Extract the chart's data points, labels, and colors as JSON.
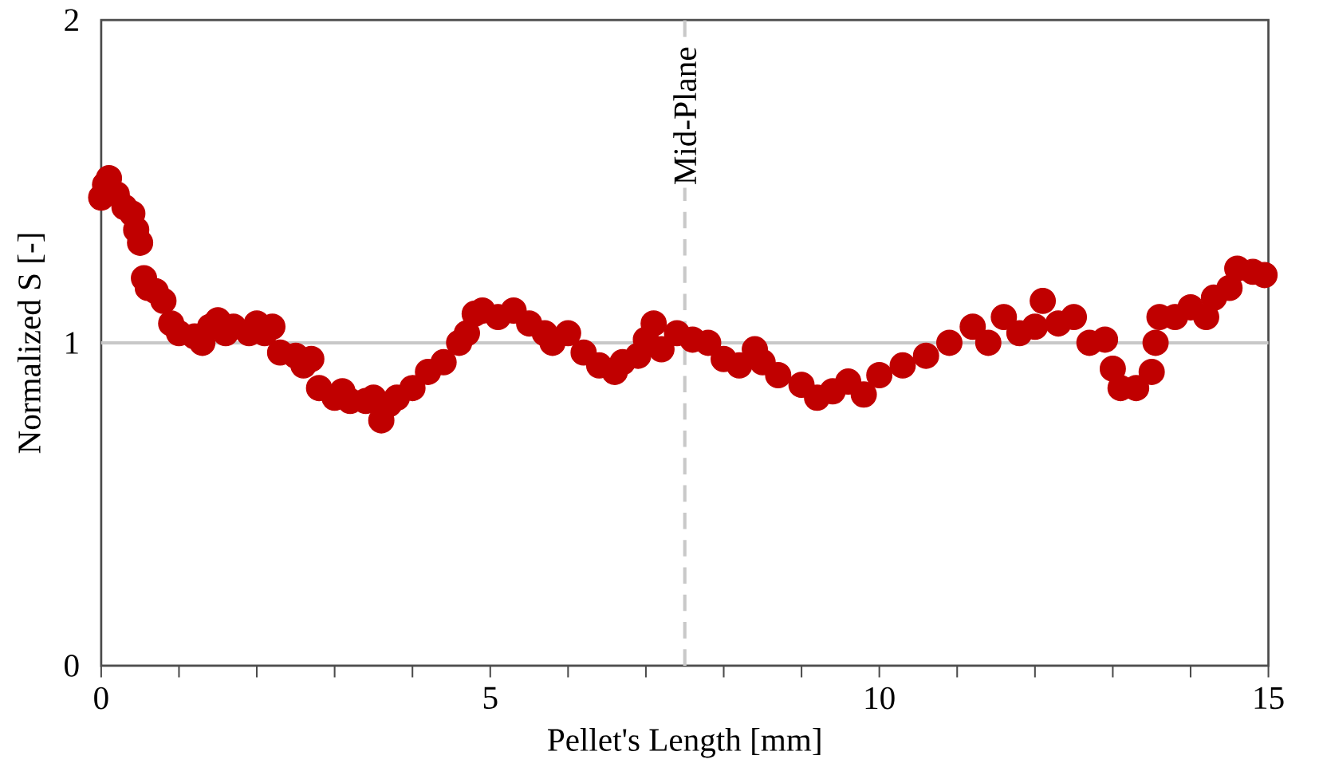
{
  "chart_data": {
    "type": "scatter",
    "xlabel": "Pellet's Length [mm]",
    "ylabel": "Normalized S [-]",
    "xlim": [
      0,
      15
    ],
    "ylim": [
      0,
      2
    ],
    "xticks": [
      0,
      {
        "value": 1,
        "label": null
      },
      {
        "value": 2,
        "label": null
      },
      {
        "value": 3,
        "label": null
      },
      {
        "value": 4,
        "label": null
      },
      5,
      {
        "value": 6,
        "label": null
      },
      {
        "value": 7,
        "label": null
      },
      {
        "value": 8,
        "label": null
      },
      {
        "value": 9,
        "label": null
      },
      10,
      {
        "value": 11,
        "label": null
      },
      {
        "value": 12,
        "label": null
      },
      {
        "value": 13,
        "label": null
      },
      {
        "value": 14,
        "label": null
      },
      15
    ],
    "yticks": [
      0,
      1,
      2
    ],
    "marker": "circle",
    "ref_lines": [
      {
        "axis": "x",
        "value": 7.5,
        "label": "Mid-Plane",
        "color": "#c8c8c8",
        "line_style": "dashed"
      },
      {
        "axis": "y",
        "value": 1,
        "color": "#c8c8c8",
        "line_style": "solid"
      }
    ],
    "series": [
      {
        "color": "#c00000",
        "x": [
          0,
          0.05,
          0.1,
          0.2,
          0.3,
          0.4,
          0.45,
          0.5,
          0.55,
          0.6,
          0.7,
          0.8,
          0.9,
          1.0,
          1.2,
          1.3,
          1.4,
          1.5,
          1.6,
          1.7,
          1.9,
          2.0,
          2.1,
          2.2,
          2.3,
          2.5,
          2.6,
          2.7,
          2.8,
          3.0,
          3.1,
          3.2,
          3.4,
          3.5,
          3.6,
          3.7,
          3.8,
          4.0,
          4.2,
          4.4,
          4.6,
          4.7,
          4.8,
          4.9,
          5.1,
          5.3,
          5.5,
          5.7,
          5.8,
          6.0,
          6.2,
          6.4,
          6.6,
          6.7,
          6.9,
          7.0,
          7.1,
          7.2,
          7.4,
          7.6,
          7.8,
          8.0,
          8.2,
          8.4,
          8.5,
          8.7,
          9.0,
          9.2,
          9.4,
          9.6,
          9.8,
          10.0,
          10.3,
          10.6,
          10.9,
          11.2,
          11.4,
          11.6,
          11.8,
          12.0,
          12.1,
          12.3,
          12.5,
          12.7,
          12.9,
          13.0,
          13.1,
          13.3,
          13.5,
          13.55,
          13.6,
          13.8,
          14.0,
          14.2,
          14.3,
          14.5,
          14.6,
          14.8,
          14.95
        ],
        "values": [
          1.45,
          1.49,
          1.51,
          1.46,
          1.42,
          1.4,
          1.35,
          1.31,
          1.2,
          1.17,
          1.16,
          1.13,
          1.06,
          1.03,
          1.02,
          1.0,
          1.05,
          1.07,
          1.03,
          1.05,
          1.03,
          1.06,
          1.03,
          1.05,
          0.97,
          0.96,
          0.93,
          0.95,
          0.86,
          0.83,
          0.85,
          0.82,
          0.82,
          0.83,
          0.76,
          0.81,
          0.83,
          0.86,
          0.91,
          0.94,
          1.0,
          1.03,
          1.09,
          1.1,
          1.08,
          1.1,
          1.06,
          1.03,
          1.0,
          1.03,
          0.97,
          0.93,
          0.91,
          0.94,
          0.96,
          1.01,
          1.06,
          0.98,
          1.03,
          1.01,
          1.0,
          0.95,
          0.93,
          0.98,
          0.94,
          0.9,
          0.87,
          0.83,
          0.85,
          0.88,
          0.84,
          0.9,
          0.93,
          0.96,
          1.0,
          1.05,
          1.0,
          1.08,
          1.03,
          1.05,
          1.13,
          1.06,
          1.08,
          1.0,
          1.01,
          0.92,
          0.86,
          0.86,
          0.91,
          1.0,
          1.08,
          1.08,
          1.11,
          1.08,
          1.14,
          1.17,
          1.23,
          1.22,
          1.21
        ]
      }
    ]
  }
}
